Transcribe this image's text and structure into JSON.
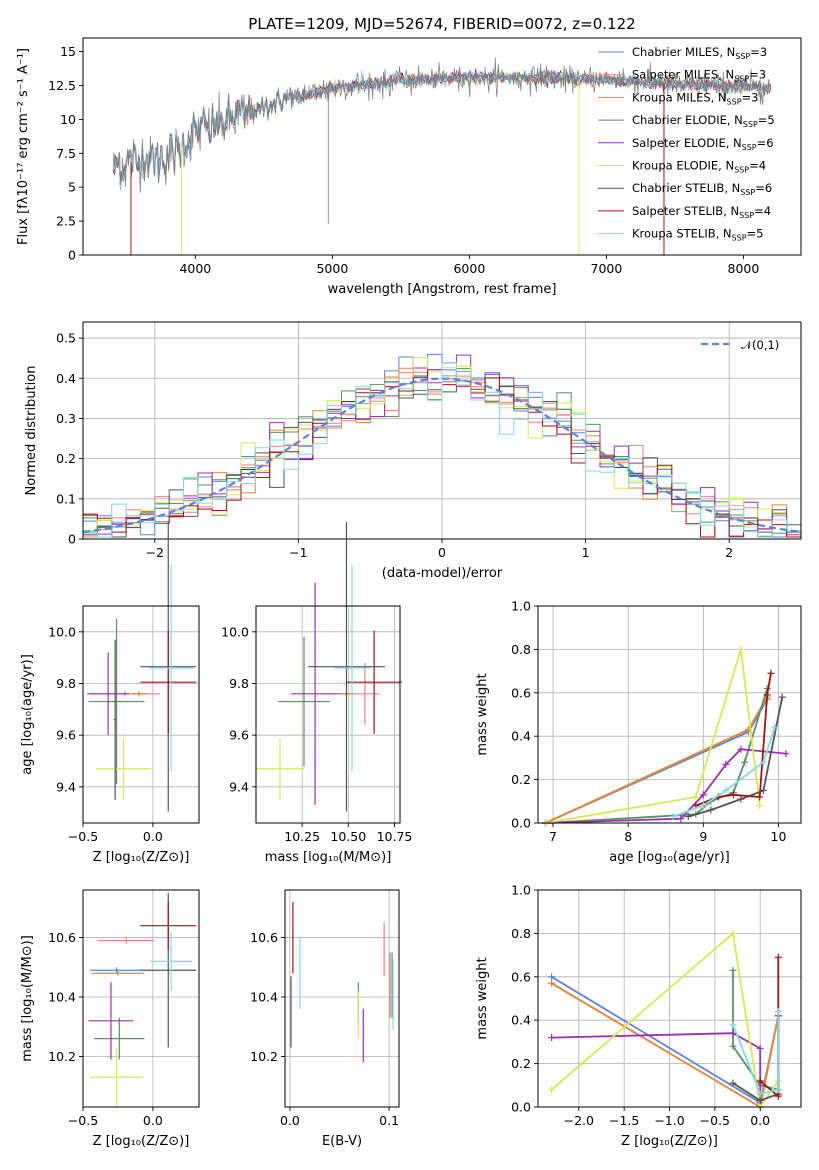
{
  "colors": {
    "Chabrier MILES": "#5b84d4",
    "Salpeter MILES": "#f07f88",
    "Kroupa MILES": "#e08a3c",
    "Chabrier ELODIE": "#5c8f63",
    "Salpeter ELODIE": "#9b30b0",
    "Kroupa ELODIE": "#d6e85a",
    "Chabrier STELIB": "#555555",
    "Salpeter STELIB": "#a01515",
    "Kroupa STELIB": "#86d8e2"
  },
  "models": [
    "Chabrier MILES",
    "Salpeter MILES",
    "Kroupa MILES",
    "Chabrier ELODIE",
    "Salpeter ELODIE",
    "Kroupa ELODIE",
    "Chabrier STELIB",
    "Salpeter STELIB",
    "Kroupa STELIB"
  ],
  "chart_data": [
    {
      "id": "spectrum",
      "type": "line",
      "title": "PLATE=1209, MJD=52674, FIBERID=0072, z=0.122",
      "xlabel": "wavelength [Angstrom, rest frame]",
      "ylabel": "Flux [fλ10⁻¹⁷ erg cm⁻² s⁻¹ A⁻¹]",
      "xlim": [
        3180,
        8420
      ],
      "ylim": [
        0,
        16
      ],
      "xticks": [
        4000,
        5000,
        6000,
        7000,
        8000
      ],
      "yticks": [
        0.0,
        2.5,
        5.0,
        7.5,
        10.0,
        12.5,
        15.0
      ],
      "data_range": [
        3400,
        8200
      ],
      "continuum": [
        [
          3400,
          6.6
        ],
        [
          3550,
          6.9
        ],
        [
          3700,
          7.2
        ],
        [
          3850,
          7.6
        ],
        [
          4000,
          9.0
        ],
        [
          4300,
          10.2
        ],
        [
          4600,
          11.3
        ],
        [
          5000,
          12.3
        ],
        [
          5500,
          12.9
        ],
        [
          6000,
          13.1
        ],
        [
          6500,
          13.1
        ],
        [
          7000,
          12.9
        ],
        [
          7500,
          12.6
        ],
        [
          8000,
          12.4
        ],
        [
          8200,
          12.3
        ]
      ],
      "legend": [
        {
          "label": "Chabrier MILES, N",
          "sub": "SSP",
          "tail": "=3"
        },
        {
          "label": "Salpeter MILES, N",
          "sub": "SSP",
          "tail": "=3"
        },
        {
          "label": "Kroupa MILES, N",
          "sub": "SSP",
          "tail": "=3"
        },
        {
          "label": "Chabrier ELODIE, N",
          "sub": "SSP",
          "tail": "=5"
        },
        {
          "label": "Salpeter ELODIE, N",
          "sub": "SSP",
          "tail": "=6"
        },
        {
          "label": "Kroupa ELODIE, N",
          "sub": "SSP",
          "tail": "=4"
        },
        {
          "label": "Chabrier STELIB, N",
          "sub": "SSP",
          "tail": "=6"
        },
        {
          "label": "Salpeter STELIB, N",
          "sub": "SSP",
          "tail": "=4"
        },
        {
          "label": "Kroupa STELIB, N",
          "sub": "SSP",
          "tail": "=5"
        }
      ]
    },
    {
      "id": "residuals",
      "type": "histogram",
      "xlabel": "(data-model)/error",
      "ylabel": "Normed distribution",
      "xlim": [
        -2.5,
        2.5
      ],
      "ylim": [
        0,
        0.54
      ],
      "xticks": [
        -2,
        -1,
        0,
        1,
        2
      ],
      "yticks": [
        0.0,
        0.1,
        0.2,
        0.3,
        0.4,
        0.5
      ],
      "bin_width": 0.1,
      "gaussian_label": "𝒩(0,1)",
      "grid": true
    },
    {
      "id": "age-vs-Z",
      "type": "errorbar",
      "xlabel": "Z [log₁₀(Z/Z⊙)]",
      "ylabel": "age  [log₁₀(age/yr)]",
      "xlim": [
        -0.5,
        0.33
      ],
      "ylim": [
        9.26,
        10.1
      ],
      "xticks": [
        -0.5,
        0.0
      ],
      "xtick_labels": [
        "−0.5",
        "0.0"
      ],
      "yticks": [
        9.4,
        9.6,
        9.8,
        10.0
      ],
      "ytick_labels": [
        "9.4",
        "9.6",
        "9.8",
        "10.0"
      ],
      "points": [
        {
          "model": "Chabrier MILES",
          "x": -0.1,
          "xerr": 0.05,
          "y": 9.76,
          "yerr": 0.01
        },
        {
          "model": "Salpeter MILES",
          "x": -0.2,
          "xerr": 0.25,
          "y": 9.76,
          "yerr": 0.01
        },
        {
          "model": "Kroupa MILES",
          "x": -0.1,
          "xerr": 0.05,
          "y": 9.76,
          "yerr": 0.01
        },
        {
          "model": "Chabrier ELODIE",
          "x": -0.26,
          "xerr": 0.2,
          "y": 9.73,
          "yerr": 0.32
        },
        {
          "model": "Salpeter ELODIE",
          "x": -0.32,
          "xerr": 0.15,
          "y": 9.76,
          "yerr": 0.16
        },
        {
          "model": "Kroupa ELODIE",
          "x": -0.21,
          "xerr": 0.2,
          "y": 9.47,
          "yerr": 0.12
        },
        {
          "model": "Chabrier STELIB",
          "x": 0.11,
          "xerr": 0.2,
          "y": 9.865,
          "yerr": 0.56
        },
        {
          "model": "Salpeter STELIB",
          "x": 0.11,
          "xerr": 0.2,
          "y": 9.805,
          "yerr": 0.2
        },
        {
          "model": "Kroupa STELIB",
          "x": 0.13,
          "xerr": 0.16,
          "y": 9.86,
          "yerr": 0.4
        },
        {
          "model": "Chabrier STELIB",
          "x": -0.27,
          "xerr": 0.01,
          "y": 9.66,
          "yerr": 0.31
        }
      ]
    },
    {
      "id": "age-vs-mass",
      "type": "errorbar",
      "xlabel": "mass [log₁₀(M/M⊙)]",
      "ylabel": "",
      "xlim": [
        10.0,
        10.78
      ],
      "ylim": [
        9.26,
        10.1
      ],
      "xticks": [
        10.25,
        10.5,
        10.75
      ],
      "xtick_labels": [
        "10.25",
        "10.50",
        "10.75"
      ],
      "yticks": [
        9.4,
        9.6,
        9.8,
        10.0
      ],
      "ytick_labels": [
        "9.4",
        "9.6",
        "9.8",
        "10.0"
      ],
      "points": [
        {
          "model": "Chabrier MILES",
          "x": 10.49,
          "xerr": 0.04,
          "y": 9.76,
          "yerr": 0.01
        },
        {
          "model": "Salpeter MILES",
          "x": 10.59,
          "xerr": 0.08,
          "y": 9.76,
          "yerr": 0.12
        },
        {
          "model": "Kroupa MILES",
          "x": 10.49,
          "xerr": 0.04,
          "y": 9.76,
          "yerr": 0.01
        },
        {
          "model": "Chabrier ELODIE",
          "x": 10.26,
          "xerr": 0.14,
          "y": 9.73,
          "yerr": 0.25
        },
        {
          "model": "Salpeter ELODIE",
          "x": 10.32,
          "xerr": 0.13,
          "y": 9.76,
          "yerr": 0.43
        },
        {
          "model": "Kroupa ELODIE",
          "x": 10.13,
          "xerr": 0.13,
          "y": 9.47,
          "yerr": 0.12
        },
        {
          "model": "Chabrier STELIB",
          "x": 10.49,
          "xerr": 0.21,
          "y": 9.865,
          "yerr": 0.56
        },
        {
          "model": "Salpeter STELIB",
          "x": 10.64,
          "xerr": 0.15,
          "y": 9.805,
          "yerr": 0.2
        },
        {
          "model": "Kroupa STELIB",
          "x": 10.52,
          "xerr": 0.1,
          "y": 9.86,
          "yerr": 0.4
        }
      ]
    },
    {
      "id": "weights-vs-age",
      "type": "line",
      "xlabel": "age  [log₁₀(age/yr)]",
      "ylabel": "mass weight",
      "xlim": [
        6.8,
        10.3
      ],
      "ylim": [
        0,
        1.0
      ],
      "xticks": [
        7,
        8,
        9,
        10
      ],
      "xtick_labels": [
        "7",
        "8",
        "9",
        "10"
      ],
      "yticks": [
        0.0,
        0.2,
        0.4,
        0.6,
        0.8,
        1.0
      ],
      "ytick_labels": [
        "0.0",
        "0.2",
        "0.4",
        "0.6",
        "0.8",
        "1.0"
      ],
      "series": [
        {
          "model": "Chabrier MILES",
          "x": [
            6.9,
            9.6,
            9.85
          ],
          "y": [
            0.0,
            0.42,
            0.57
          ]
        },
        {
          "model": "Salpeter MILES",
          "x": [
            6.9,
            9.6,
            9.85
          ],
          "y": [
            0.0,
            0.43,
            0.58
          ]
        },
        {
          "model": "Kroupa MILES",
          "x": [
            6.9,
            9.6,
            9.85
          ],
          "y": [
            0.0,
            0.43,
            0.58
          ]
        },
        {
          "model": "Chabrier ELODIE",
          "x": [
            6.9,
            8.9,
            9.1,
            9.4,
            9.55,
            9.85
          ],
          "y": [
            0.0,
            0.04,
            0.1,
            0.14,
            0.28,
            0.62
          ]
        },
        {
          "model": "Salpeter ELODIE",
          "x": [
            6.9,
            8.7,
            9.0,
            9.3,
            9.5,
            10.1
          ],
          "y": [
            0.0,
            0.02,
            0.13,
            0.27,
            0.34,
            0.32
          ]
        },
        {
          "model": "Kroupa ELODIE",
          "x": [
            6.9,
            8.9,
            9.5,
            9.75
          ],
          "y": [
            0.0,
            0.12,
            0.8,
            0.08
          ]
        },
        {
          "model": "Chabrier STELIB",
          "x": [
            8.8,
            9.1,
            9.5,
            9.8,
            10.05
          ],
          "y": [
            0.03,
            0.06,
            0.11,
            0.15,
            0.58
          ]
        },
        {
          "model": "Salpeter STELIB",
          "x": [
            8.9,
            9.2,
            9.4,
            9.75,
            9.85,
            9.9
          ],
          "y": [
            0.08,
            0.12,
            0.13,
            0.12,
            0.59,
            0.69
          ]
        },
        {
          "model": "Kroupa STELIB",
          "x": [
            8.6,
            9.0,
            9.3,
            9.8,
            9.95
          ],
          "y": [
            0.03,
            0.08,
            0.15,
            0.28,
            0.44
          ]
        }
      ]
    },
    {
      "id": "mass-vs-Z",
      "type": "errorbar",
      "xlabel": "Z [log₁₀(Z/Z⊙)]",
      "ylabel": "mass [log₁₀(M/M⊙)]",
      "xlim": [
        -0.5,
        0.33
      ],
      "ylim": [
        10.03,
        10.76
      ],
      "xticks": [
        -0.5,
        0.0
      ],
      "xtick_labels": [
        "−0.5",
        "0.0"
      ],
      "yticks": [
        10.2,
        10.4,
        10.6
      ],
      "ytick_labels": [
        "10.2",
        "10.4",
        "10.6"
      ],
      "points": [
        {
          "model": "Chabrier MILES",
          "x": -0.26,
          "xerr": 0.19,
          "y": 10.49,
          "yerr": 0.01
        },
        {
          "model": "Salpeter MILES",
          "x": -0.19,
          "xerr": 0.2,
          "y": 10.59,
          "yerr": 0.01
        },
        {
          "model": "Kroupa MILES",
          "x": -0.25,
          "xerr": 0.19,
          "y": 10.48,
          "yerr": 0.01
        },
        {
          "model": "Chabrier ELODIE",
          "x": -0.24,
          "xerr": 0.18,
          "y": 10.26,
          "yerr": 0.07
        },
        {
          "model": "Salpeter ELODIE",
          "x": -0.3,
          "xerr": 0.16,
          "y": 10.32,
          "yerr": 0.13
        },
        {
          "model": "Kroupa ELODIE",
          "x": -0.26,
          "xerr": 0.19,
          "y": 10.13,
          "yerr": 0.1
        },
        {
          "model": "Chabrier STELIB",
          "x": 0.11,
          "xerr": 0.2,
          "y": 10.49,
          "yerr": 0.26
        },
        {
          "model": "Salpeter STELIB",
          "x": 0.11,
          "xerr": 0.2,
          "y": 10.64,
          "yerr": 0.08
        },
        {
          "model": "Kroupa STELIB",
          "x": 0.13,
          "xerr": 0.15,
          "y": 10.52,
          "yerr": 0.1
        }
      ]
    },
    {
      "id": "mass-vs-EBV",
      "type": "errorbar",
      "xlabel": "E(B-V)",
      "ylabel": "",
      "xlim": [
        -0.005,
        0.11
      ],
      "ylim": [
        10.03,
        10.76
      ],
      "xticks": [
        0.0,
        0.1
      ],
      "xtick_labels": [
        "0.0",
        "0.1"
      ],
      "yticks": [
        10.2,
        10.4,
        10.6
      ],
      "ytick_labels": [
        "10.2",
        "10.4",
        "10.6"
      ],
      "points": [
        {
          "model": "Chabrier MILES",
          "x": 0.103,
          "y": 10.44,
          "yerr": 0.11
        },
        {
          "model": "Salpeter MILES",
          "x": 0.095,
          "y": 10.56,
          "yerr": 0.09
        },
        {
          "model": "Kroupa MILES",
          "x": 0.101,
          "y": 10.44,
          "yerr": 0.11
        },
        {
          "model": "Chabrier ELODIE",
          "x": 0.069,
          "y": 10.38,
          "yerr": 0.07
        },
        {
          "model": "Salpeter ELODIE",
          "x": 0.074,
          "y": 10.27,
          "yerr": 0.09
        },
        {
          "model": "Kroupa ELODIE",
          "x": 0.069,
          "y": 10.34,
          "yerr": 0.08
        },
        {
          "model": "Chabrier STELIB",
          "x": 0.001,
          "y": 10.35,
          "yerr": 0.12
        },
        {
          "model": "Salpeter STELIB",
          "x": 0.003,
          "y": 10.6,
          "yerr": 0.12
        },
        {
          "model": "Kroupa STELIB",
          "x": 0.01,
          "y": 10.48,
          "yerr": 0.12
        },
        {
          "model": "Kroupa STELIB",
          "x": 0.104,
          "y": 10.41,
          "yerr": 0.12
        }
      ]
    },
    {
      "id": "weights-vs-Z",
      "type": "line",
      "xlabel": "Z [log₁₀(Z/Z⊙)]",
      "ylabel": "mass weight",
      "xlim": [
        -2.45,
        0.45
      ],
      "ylim": [
        0,
        1.0
      ],
      "xticks": [
        -2.0,
        -1.5,
        -1.0,
        -0.5,
        0.0
      ],
      "xtick_labels": [
        "−2.0",
        "−1.5",
        "−1.0",
        "−0.5",
        "0.0"
      ],
      "yticks": [
        0.0,
        0.2,
        0.4,
        0.6,
        0.8,
        1.0
      ],
      "ytick_labels": [
        "0.0",
        "0.2",
        "0.4",
        "0.6",
        "0.8",
        "1.0"
      ],
      "series": [
        {
          "model": "Chabrier MILES",
          "x": [
            -2.3,
            0.0,
            0.2
          ],
          "y": [
            0.6,
            0.02,
            0.42
          ]
        },
        {
          "model": "Salpeter MILES",
          "x": [
            -2.3,
            0.0,
            0.2
          ],
          "y": [
            0.57,
            0.0,
            0.42
          ]
        },
        {
          "model": "Kroupa MILES",
          "x": [
            -2.3,
            0.0,
            0.2
          ],
          "y": [
            0.57,
            0.0,
            0.42
          ]
        },
        {
          "model": "Chabrier ELODIE",
          "x": [
            -0.3,
            -0.3,
            0.0,
            0.2,
            0.2
          ],
          "y": [
            0.63,
            0.28,
            0.1,
            0.08,
            0.42
          ]
        },
        {
          "model": "Salpeter ELODIE",
          "x": [
            -2.3,
            -0.3,
            0.0,
            0.0
          ],
          "y": [
            0.32,
            0.34,
            0.27,
            0.02
          ]
        },
        {
          "model": "Kroupa ELODIE",
          "x": [
            -2.3,
            -0.3,
            0.0,
            0.2
          ],
          "y": [
            0.08,
            0.8,
            0.0,
            0.12
          ]
        },
        {
          "model": "Chabrier STELIB",
          "x": [
            -0.3,
            0.0,
            0.2,
            0.2
          ],
          "y": [
            0.11,
            0.03,
            0.06,
            0.42
          ]
        },
        {
          "model": "Salpeter STELIB",
          "x": [
            0.0,
            0.2,
            0.2
          ],
          "y": [
            0.12,
            0.05,
            0.69
          ]
        },
        {
          "model": "Kroupa STELIB",
          "x": [
            -0.3,
            0.0,
            0.2,
            0.2
          ],
          "y": [
            0.38,
            0.06,
            0.08,
            0.44
          ]
        }
      ]
    }
  ]
}
